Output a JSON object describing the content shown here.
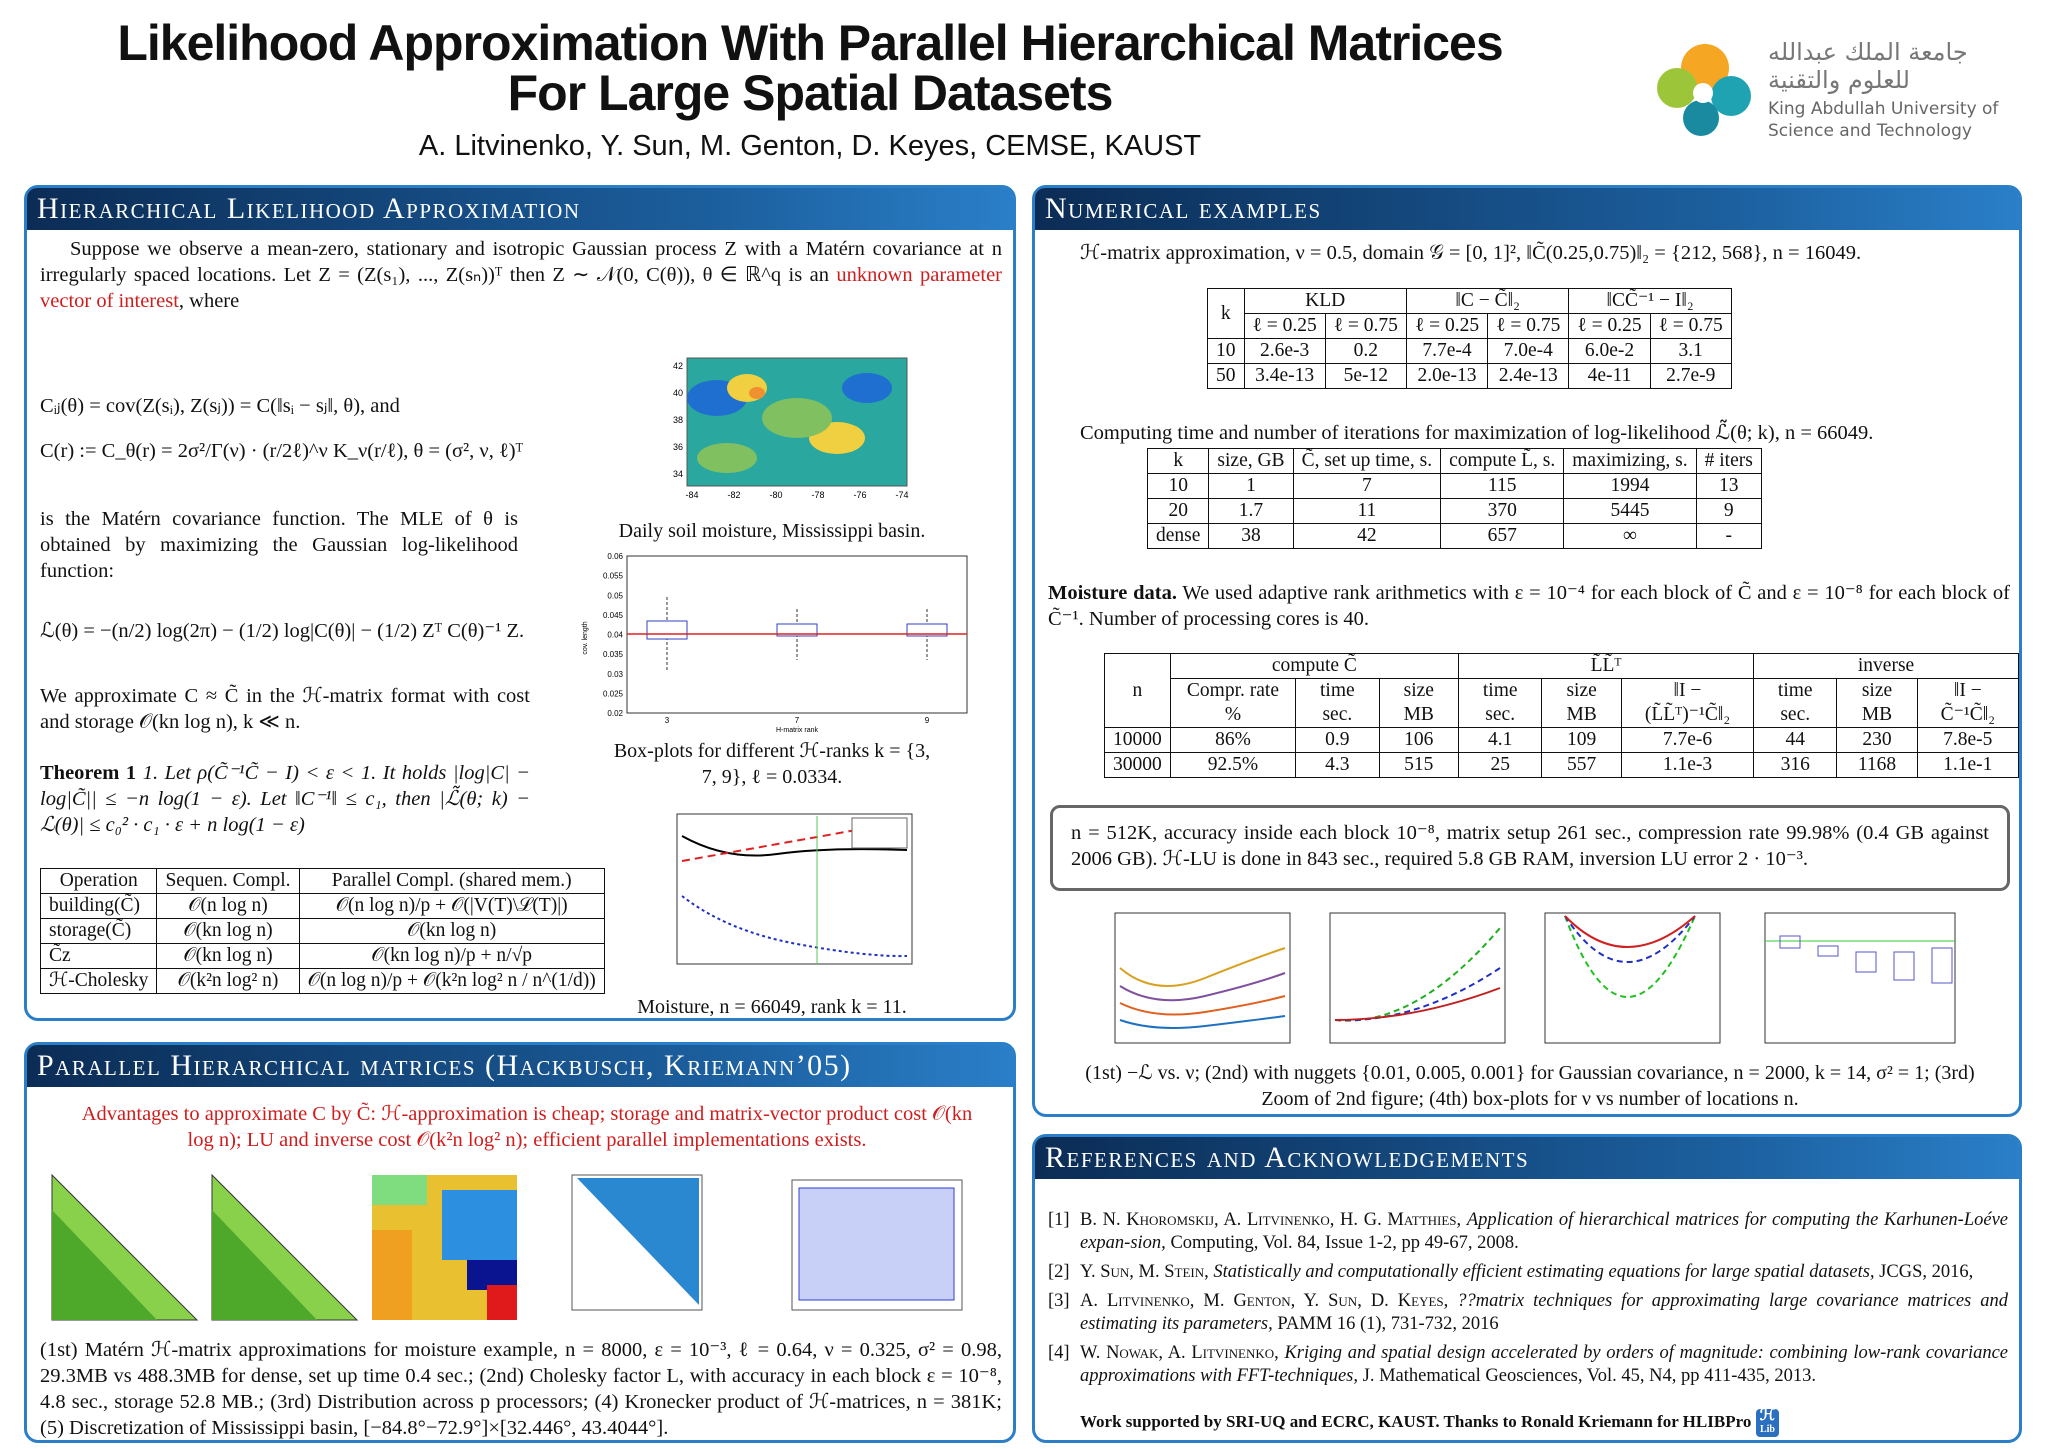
{
  "header": {
    "title_line1": "Likelihood Approximation With Parallel Hierarchical Matrices",
    "title_line2": "For Large Spatial Datasets",
    "authors": "A. Litvinenko, Y. Sun, M. Genton, D. Keyes, CEMSE, KAUST",
    "logo_arabic_1": "جامعة الملك عبدالله",
    "logo_arabic_2": "للعلوم والتقنية",
    "logo_english_1": "King Abdullah University of",
    "logo_english_2": "Science and Technology"
  },
  "hierarchical": {
    "title": "Hierarchical Likelihood Approximation",
    "intro_a": "Suppose we observe a mean-zero, stationary and isotropic Gaussian process Z with a Matérn covariance at n irregularly spaced locations. Let Z = (Z(s₁), ..., Z(sₙ))ᵀ then Z ∼ 𝒩(0, C(θ)), θ ∈ ℝ^q is an ",
    "intro_red": "unknown parameter vector of interest",
    "intro_b": ", where",
    "eq_cij": "Cᵢⱼ(θ) = cov(Z(sᵢ), Z(sⱼ)) = C(‖sᵢ − sⱼ‖, θ),  and",
    "eq_cr": "C(r) := C_θ(r) = 2σ²/Γ(ν) · (r/2ℓ)^ν K_ν(r/ℓ),  θ = (σ², ν, ℓ)ᵀ",
    "matern_text": "is the Matérn covariance function. The MLE of θ is obtained by maximizing the Gaussian log-likelihood function:",
    "eq_lik": "ℒ(θ) = −(n/2) log(2π) − (1/2) log|C(θ)| − (1/2) Zᵀ C(θ)⁻¹ Z.",
    "approx_text": "We approximate C ≈ C̃ in the ℋ-matrix format with cost and storage 𝒪(kn log n), k ≪ n.",
    "theorem_label": "Theorem 1",
    "theorem_text": "1. Let ρ(C̃⁻¹C̃ − I) < ε < 1. It holds |log|C| − log|C̃|| ≤ −n log(1 − ε). Let ‖C⁻¹‖ ≤ c₁, then |ℒ̃(θ; k) − ℒ(θ)| ≤ c₀² · c₁ · ε + n log(1 − ε)",
    "map_caption": "Daily soil moisture, Mississippi basin.",
    "map_yticks": [
      34,
      36,
      38,
      40,
      42
    ],
    "map_xticks": [
      -84,
      -82,
      -80,
      -78,
      -76,
      -74
    ],
    "box_yticks": [
      0.02,
      0.025,
      0.03,
      0.035,
      0.04,
      0.045,
      0.05,
      0.055,
      0.06
    ],
    "box_xticks": [
      3,
      7,
      9
    ],
    "box_xlabel": "H-matrix rank",
    "box_ylabel": "cov. length",
    "box_caption": "Box-plots for different ℋ-ranks k = {3, 7, 9}, ℓ = 0.0334.",
    "moisture_caption": "Moisture, n = 66049, rank k = 11.",
    "table": {
      "header_rows": [
        [
          "Operation",
          "Sequen. Compl.",
          "Parallel Compl. (shared mem.)"
        ]
      ],
      "rows": [
        [
          "building(C̃)",
          "𝒪(n log n)",
          "𝒪(n log n)/p + 𝒪(|V(T)\\ℒ(T)|)"
        ],
        [
          "storage(C̃)",
          "𝒪(kn log n)",
          "𝒪(kn log n)"
        ],
        [
          "C̃z",
          "𝒪(kn log n)",
          "𝒪(kn log n)/p + n/√p"
        ],
        [
          "ℋ-Cholesky",
          "𝒪(k²n log² n)",
          "𝒪(n log n)/p + 𝒪(k²n log² n / n^(1/d))"
        ]
      ]
    }
  },
  "parallel": {
    "title": "Parallel Hierarchical matrices (Hackbusch, Kriemann’05)",
    "advantages": "Advantages to approximate C by C̃: ℋ-approximation is cheap; storage and matrix-vector product cost 𝒪(kn log n); LU and inverse cost 𝒪(k²n log² n); efficient parallel implementations exists.",
    "caption": "(1st) Matérn ℋ-matrix approximations for moisture example, n = 8000, ε = 10⁻³, ℓ = 0.64, ν = 0.325, σ² = 0.98, 29.3MB vs 488.3MB for dense, set up time 0.4 sec.; (2nd) Cholesky factor L, with accuracy in each block ε = 10⁻⁸, 4.8 sec., storage 52.8 MB.; (3rd) Distribution across p processors; (4) Kronecker product of ℋ-matrices, n = 381K; (5) Discretization of Mississippi basin, [−84.8°−72.9°]×[32.446°, 43.4044°]."
  },
  "numerical": {
    "title": "Numerical examples",
    "intro": "ℋ-matrix approximation, ν = 0.5, domain 𝒢 = [0, 1]², ‖C̃(0.25,0.75)‖₂ = {212, 568}, n = 16049.",
    "table1": {
      "header_rows": [
        [
          "k",
          "KLD",
          "‖C − C̃‖₂",
          "‖CC̃⁻¹ − I‖₂"
        ],
        [
          "ℓ = 0.25",
          "ℓ = 0.75",
          "ℓ = 0.25",
          "ℓ = 0.75",
          "ℓ = 0.25",
          "ℓ = 0.75"
        ]
      ],
      "rows": [
        [
          "10",
          "2.6e-3",
          "0.2",
          "7.7e-4",
          "7.0e-4",
          "6.0e-2",
          "3.1"
        ],
        [
          "50",
          "3.4e-13",
          "5e-12",
          "2.0e-13",
          "2.4e-13",
          "4e-11",
          "2.7e-9"
        ]
      ]
    },
    "caption2": "Computing time and number of iterations for maximization of log-likelihood ℒ̃(θ; k), n = 66049.",
    "table2": {
      "header_rows": [
        [
          "k",
          "size, GB",
          "C̃, set up time, s.",
          "compute L̃, s.",
          "maximizing, s.",
          "# iters"
        ]
      ],
      "rows": [
        [
          "10",
          "1",
          "7",
          "115",
          "1994",
          "13"
        ],
        [
          "20",
          "1.7",
          "11",
          "370",
          "5445",
          "9"
        ],
        [
          "dense",
          "38",
          "42",
          "657",
          "∞",
          "-"
        ]
      ]
    },
    "moisture_label": "Moisture data.",
    "moisture_text": "We used adaptive rank arithmetics with ε = 10⁻⁴ for each block of C̃ and ε = 10⁻⁸ for each block of C̃⁻¹. Number of processing cores is 40.",
    "table3": {
      "header_rows": [
        [
          "n",
          "compute C̃",
          "L̃L̃ᵀ",
          "inverse"
        ],
        [
          "Compr. rate %",
          "time sec.",
          "size MB",
          "time sec.",
          "size MB",
          "‖I − (L̃L̃ᵀ)⁻¹C̃‖₂",
          "time sec.",
          "size MB",
          "‖I − C̃⁻¹C̃‖₂"
        ]
      ],
      "rows": [
        [
          "10000",
          "86%",
          "0.9",
          "106",
          "4.1",
          "109",
          "7.7e-6",
          "44",
          "230",
          "7.8e-5"
        ],
        [
          "30000",
          "92.5%",
          "4.3",
          "515",
          "25",
          "557",
          "1.1e-3",
          "316",
          "1168",
          "1.1e-1"
        ]
      ]
    },
    "box_text": "n = 512K, accuracy inside each block 10⁻⁸, matrix setup 261 sec., compression rate 99.98% (0.4 GB against 2006 GB). ℋ-LU is done in 843 sec., required 5.8 GB RAM, inversion LU error 2 · 10⁻³.",
    "plots_caption": "(1st) −ℒ vs. ν; (2nd) with nuggets {0.01, 0.005, 0.001} for Gaussian covariance, n = 2000, k = 14, σ² = 1; (3rd) Zoom of 2nd figure; (4th) box-plots for ν vs number of locations n."
  },
  "references": {
    "title": "References and Acknowledgements",
    "items": [
      {
        "num": "[1]",
        "authors": "B. N. Khoromskij, A. Litvinenko, H. G. Matthies,",
        "work": "Application of hierarchical matrices for computing the Karhunen-Loéve expan-sion,",
        "venue": "Computing, Vol. 84, Issue 1-2, pp 49-67, 2008."
      },
      {
        "num": "[2]",
        "authors": "Y. Sun, M. Stein,",
        "work": "Statistically and computationally efficient estimating equations for large spatial datasets,",
        "venue": "JCGS, 2016,"
      },
      {
        "num": "[3]",
        "authors": "A. Litvinenko, M. Genton, Y. Sun, D. Keyes,",
        "work": "??matrix techniques for approximating large covariance matrices and estimating its parameters,",
        "venue": "PAMM 16 (1), 731-732, 2016"
      },
      {
        "num": "[4]",
        "authors": "W. Nowak, A. Litvinenko,",
        "work": "Kriging and spatial design accelerated by orders of magnitude: combining low-rank covariance approximations with FFT-techniques,",
        "venue": "J. Mathematical Geosciences, Vol. 45, N4, pp 411-435, 2013."
      }
    ],
    "ack": "Work supported by SRI-UQ and ECRC, KAUST. Thanks to Ronald Kriemann for HLIBPro",
    "icon_h": "ℋ",
    "icon_lib": "Lib"
  }
}
